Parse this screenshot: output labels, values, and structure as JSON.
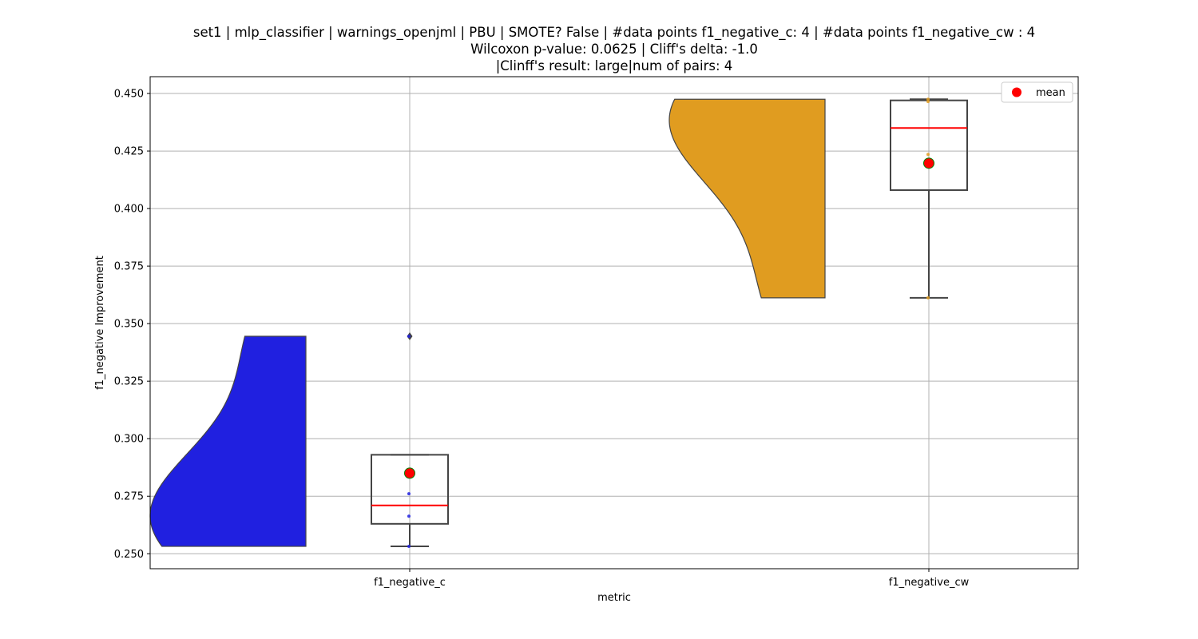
{
  "chart_data": {
    "type": "violin+box",
    "title_lines": [
      "set1 | mlp_classifier | warnings_openjml | PBU | SMOTE? False | #data points f1_negative_c: 4 | #data points f1_negative_cw : 4",
      "Wilcoxon p-value: 0.0625 | Cliff's delta: -1.0",
      "|Clinff's result: large|num of pairs: 4"
    ],
    "xlabel": "metric",
    "ylabel": "f1_negative Improvement",
    "categories": [
      "f1_negative_c",
      "f1_negative_cw"
    ],
    "ylim": [
      0.2435,
      0.4573
    ],
    "yticks": [
      0.25,
      0.275,
      0.3,
      0.325,
      0.35,
      0.375,
      0.4,
      0.425,
      0.45
    ],
    "ytick_labels": [
      "0.250",
      "0.275",
      "0.300",
      "0.325",
      "0.350",
      "0.375",
      "0.400",
      "0.425",
      "0.450"
    ],
    "grid": true,
    "legend": {
      "placement": "top-right",
      "entries": [
        {
          "label": "mean",
          "color": "#ff0000"
        }
      ]
    },
    "series": [
      {
        "category": "f1_negative_c",
        "violin_color": "#2020e0",
        "data_points": [
          0.2532,
          0.2663,
          0.2761,
          0.3445
        ],
        "box": {
          "q1": 0.263,
          "median": 0.271,
          "q3": 0.293,
          "whisker_low": 0.2532,
          "whisker_high": 0.293
        },
        "outliers": [
          0.3445
        ],
        "mean": 0.285
      },
      {
        "category": "f1_negative_cw",
        "violin_color": "#e09c20",
        "data_points": [
          0.3612,
          0.4235,
          0.4465,
          0.4475
        ],
        "box": {
          "q1": 0.408,
          "median": 0.435,
          "q3": 0.447,
          "whisker_low": 0.3612,
          "whisker_high": 0.4475
        },
        "outliers": [],
        "mean": 0.4197
      }
    ],
    "colors": {
      "median": "#ff0000",
      "mean_fill": "#ff0000",
      "mean_edge": "#008000",
      "box_edge": "#444444",
      "grid": "#b0b0b0"
    }
  }
}
